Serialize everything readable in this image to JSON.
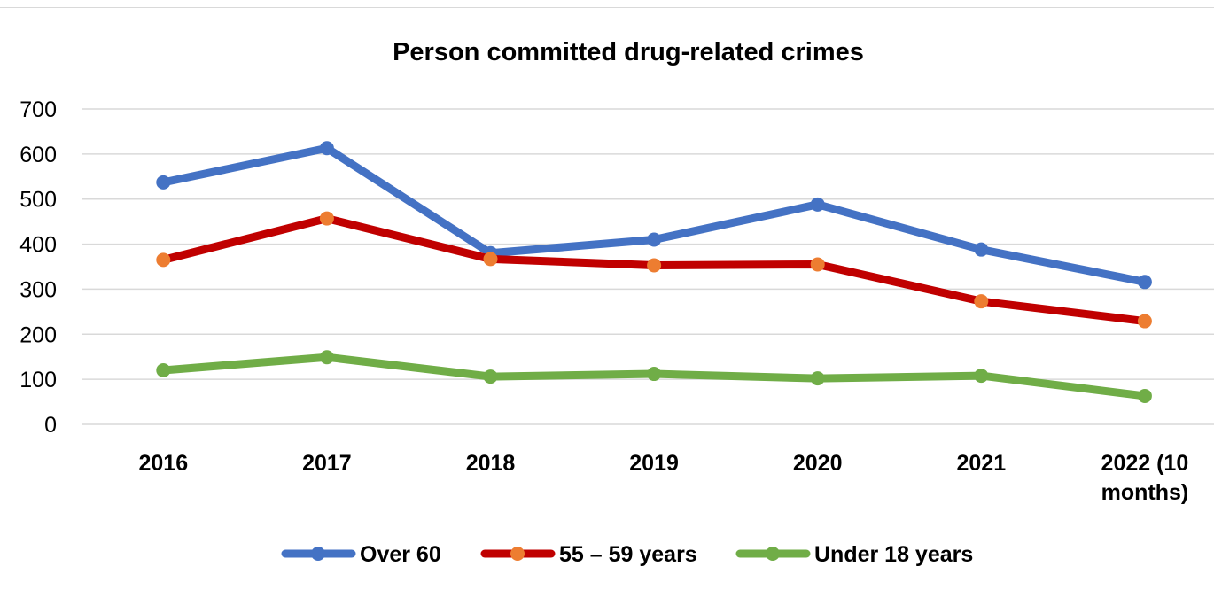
{
  "chart_data": {
    "type": "line",
    "title": "Person committed drug-related crimes",
    "xlabel": "",
    "ylabel": "",
    "categories": [
      "2016",
      "2017",
      "2018",
      "2019",
      "2020",
      "2021",
      "2022 (10 months)"
    ],
    "category_lines": [
      [
        "2016"
      ],
      [
        "2017"
      ],
      [
        "2018"
      ],
      [
        "2019"
      ],
      [
        "2020"
      ],
      [
        "2021"
      ],
      [
        "2022 (10",
        "months)"
      ]
    ],
    "ylim": [
      0,
      700
    ],
    "yticks": [
      0,
      100,
      200,
      300,
      400,
      500,
      600,
      700
    ],
    "grid": true,
    "legend_position": "bottom",
    "series": [
      {
        "name": "Over 60",
        "color": "#4472C4",
        "marker_color": "#4472C4",
        "values": [
          537,
          613,
          380,
          410,
          488,
          388,
          316
        ]
      },
      {
        "name": "55 – 59 years",
        "color": "#C00000",
        "marker_color": "#ED7D31",
        "values": [
          365,
          457,
          367,
          353,
          355,
          273,
          229
        ]
      },
      {
        "name": "Under 18 years",
        "color": "#70AD47",
        "marker_color": "#70AD47",
        "values": [
          120,
          149,
          106,
          112,
          102,
          108,
          63
        ]
      }
    ]
  }
}
